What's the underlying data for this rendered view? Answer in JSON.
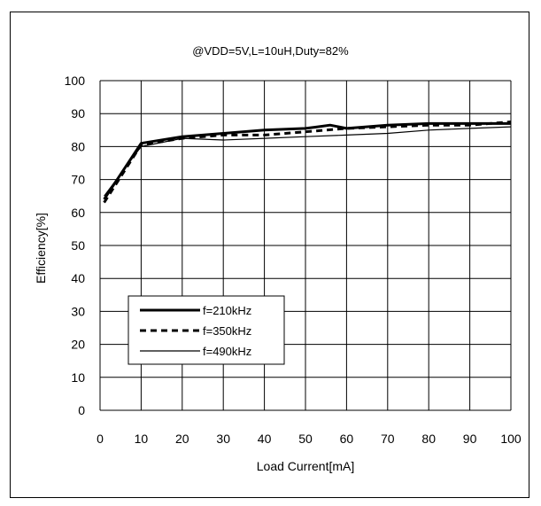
{
  "chart_data": {
    "type": "line",
    "title": "@VDD=5V,L=10uH,Duty=82%",
    "xlabel": "Load Current[mA]",
    "ylabel": "Efficiency[%]",
    "xlim": [
      0,
      100
    ],
    "ylim": [
      0,
      100
    ],
    "xticks": [
      0,
      10,
      20,
      30,
      40,
      50,
      60,
      70,
      80,
      90,
      100
    ],
    "yticks": [
      0,
      10,
      20,
      30,
      40,
      50,
      60,
      70,
      80,
      90,
      100
    ],
    "grid": true,
    "legend_position": "lower-left",
    "series": [
      {
        "name": "f=210kHz",
        "style": "solid-thick",
        "x": [
          1,
          10,
          20,
          30,
          40,
          50,
          53,
          56,
          60,
          70,
          80,
          90,
          100
        ],
        "y": [
          64,
          81,
          83,
          84,
          85,
          85.5,
          86,
          86.5,
          85.5,
          86.5,
          87,
          87,
          87
        ]
      },
      {
        "name": "f=350kHz",
        "style": "dashed",
        "x": [
          1,
          10,
          20,
          30,
          40,
          50,
          60,
          70,
          80,
          90,
          100
        ],
        "y": [
          63,
          80.5,
          82.5,
          83.5,
          83.5,
          84.5,
          85.5,
          86,
          86.5,
          86.5,
          87.5
        ]
      },
      {
        "name": "f=490kHz",
        "style": "solid-thin",
        "x": [
          1,
          10,
          20,
          30,
          40,
          50,
          60,
          70,
          80,
          90,
          100
        ],
        "y": [
          65,
          80,
          82.5,
          82,
          82.5,
          83,
          83.5,
          84,
          85,
          85.5,
          86
        ]
      }
    ]
  }
}
